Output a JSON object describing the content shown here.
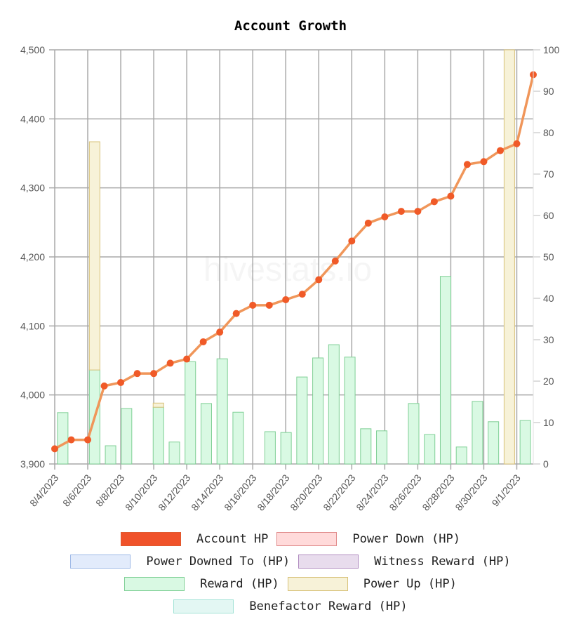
{
  "chart_data": {
    "type": "bar+line",
    "title": "Account Growth",
    "watermark": "hivestats.io",
    "categories": [
      "8/4/2023",
      "8/5/2023",
      "8/6/2023",
      "8/7/2023",
      "8/8/2023",
      "8/9/2023",
      "8/10/2023",
      "8/11/2023",
      "8/12/2023",
      "8/13/2023",
      "8/14/2023",
      "8/15/2023",
      "8/16/2023",
      "8/17/2023",
      "8/18/2023",
      "8/19/2023",
      "8/20/2023",
      "8/21/2023",
      "8/22/2023",
      "8/23/2023",
      "8/24/2023",
      "8/25/2023",
      "8/26/2023",
      "8/27/2023",
      "8/28/2023",
      "8/29/2023",
      "8/30/2023",
      "8/31/2023",
      "9/1/2023",
      "9/2/2023"
    ],
    "x_tick_labels": [
      "8/4/2023",
      "8/6/2023",
      "8/8/2023",
      "8/10/2023",
      "8/12/2023",
      "8/14/2023",
      "8/16/2023",
      "8/18/2023",
      "8/20/2023",
      "8/22/2023",
      "8/24/2023",
      "8/26/2023",
      "8/28/2023",
      "8/30/2023",
      "9/1/2023"
    ],
    "y_left": {
      "label": "",
      "range": [
        3900,
        4500
      ],
      "ticks": [
        "3,900",
        "4,000",
        "4,100",
        "4,200",
        "4,300",
        "4,400",
        "4,500"
      ],
      "tick_values": [
        3900,
        4000,
        4100,
        4200,
        4300,
        4400,
        4500
      ]
    },
    "y_right": {
      "label": "",
      "range": [
        0,
        100
      ],
      "ticks": [
        "0",
        "10",
        "20",
        "30",
        "40",
        "50",
        "60",
        "70",
        "80",
        "90",
        "100"
      ],
      "tick_values": [
        0,
        10,
        20,
        30,
        40,
        50,
        60,
        70,
        80,
        90,
        100
      ]
    },
    "grid": true,
    "legend_position": "bottom",
    "series": [
      {
        "name": "Account HP",
        "type": "line",
        "axis": "left",
        "color": "#f05a28",
        "line_color": "#f0965a",
        "values": [
          3922,
          3935,
          3935,
          4013,
          4018,
          4031,
          4031,
          4046,
          4052,
          4077,
          4091,
          4118,
          4130,
          4130,
          4138,
          4146,
          4167,
          4194,
          4223,
          4249,
          4258,
          4266,
          4266,
          4280,
          4288,
          4334,
          4338,
          4354,
          4364,
          4464
        ]
      },
      {
        "name": "Power Down (HP)",
        "type": "bar",
        "axis": "right",
        "fill": "#ffdada",
        "border": "#e08a8a",
        "values": [
          0,
          0,
          0,
          0,
          0,
          0,
          0,
          0,
          0,
          0,
          0,
          0,
          0,
          0,
          0,
          0,
          0,
          0,
          0,
          0,
          0,
          0,
          0,
          0,
          0,
          0,
          0,
          0,
          0,
          0
        ]
      },
      {
        "name": "Power Downed To (HP)",
        "type": "bar",
        "axis": "right",
        "fill": "#e2ebfb",
        "border": "#9db8e6",
        "values": [
          0,
          0,
          0,
          0,
          0,
          0,
          0,
          0,
          0,
          0,
          0,
          0,
          0,
          0,
          0,
          0,
          0,
          0,
          0,
          0,
          0,
          0,
          0,
          0,
          0,
          0,
          0,
          0,
          0,
          0
        ]
      },
      {
        "name": "Witness Reward (HP)",
        "type": "bar",
        "axis": "right",
        "fill": "#e8dced",
        "border": "#b08cc0",
        "values": [
          0,
          0,
          0,
          0,
          0,
          0,
          0,
          0,
          0,
          0,
          0,
          0,
          0,
          0,
          0,
          0,
          0,
          0,
          0,
          0,
          0,
          0,
          0,
          0,
          0,
          0,
          0,
          0,
          0,
          0
        ]
      },
      {
        "name": "Reward (HP)",
        "type": "bar",
        "axis": "right",
        "fill": "#d9f9e3",
        "border": "#7fcf95",
        "values": [
          12.4,
          0,
          22.7,
          4.4,
          13.4,
          0,
          13.7,
          5.3,
          24.7,
          14.6,
          25.4,
          12.5,
          0,
          7.8,
          7.6,
          21.0,
          25.6,
          28.8,
          25.8,
          8.5,
          8.0,
          0,
          14.6,
          7.1,
          45.3,
          4.1,
          15.1,
          10.2,
          0,
          10.5
        ]
      },
      {
        "name": "Power Up (HP)",
        "type": "bar",
        "axis": "right",
        "fill": "#f7f2d8",
        "border": "#d8c27a",
        "values": [
          0,
          0,
          55.1,
          0,
          0,
          0,
          1.0,
          0,
          0,
          0,
          0,
          0,
          0,
          0,
          0,
          0,
          0,
          0,
          0,
          0,
          0,
          0,
          0,
          0,
          0,
          0,
          0,
          0,
          100,
          0
        ]
      },
      {
        "name": "Benefactor Reward (HP)",
        "type": "bar",
        "axis": "right",
        "fill": "#e3f7f3",
        "border": "#a3e3d6",
        "values": [
          0,
          0,
          0,
          0,
          0,
          0,
          0,
          0,
          0,
          0,
          0,
          0,
          0,
          0,
          0,
          0,
          0,
          0,
          0,
          0,
          0,
          0,
          0,
          0,
          0,
          0,
          0,
          0,
          0,
          0
        ]
      }
    ],
    "stacked_bars": true
  },
  "legend": {
    "rows": [
      [
        {
          "label": "Account HP",
          "fill": "#f0522a",
          "border": "#e05a30"
        },
        {
          "label": "Power Down (HP)",
          "fill": "#ffdada",
          "border": "#e08a8a"
        }
      ],
      [
        {
          "label": "Power Downed To (HP)",
          "fill": "#e2ebfb",
          "border": "#9db8e6"
        },
        {
          "label": "Witness Reward (HP)",
          "fill": "#e8dced",
          "border": "#b08cc0"
        }
      ],
      [
        {
          "label": "Reward (HP)",
          "fill": "#d9f9e3",
          "border": "#7fcf95"
        },
        {
          "label": "Power Up (HP)",
          "fill": "#f7f2d8",
          "border": "#d8c27a"
        }
      ],
      [
        {
          "label": "Benefactor Reward (HP)",
          "fill": "#e3f7f3",
          "border": "#a3e3d6"
        }
      ]
    ]
  }
}
